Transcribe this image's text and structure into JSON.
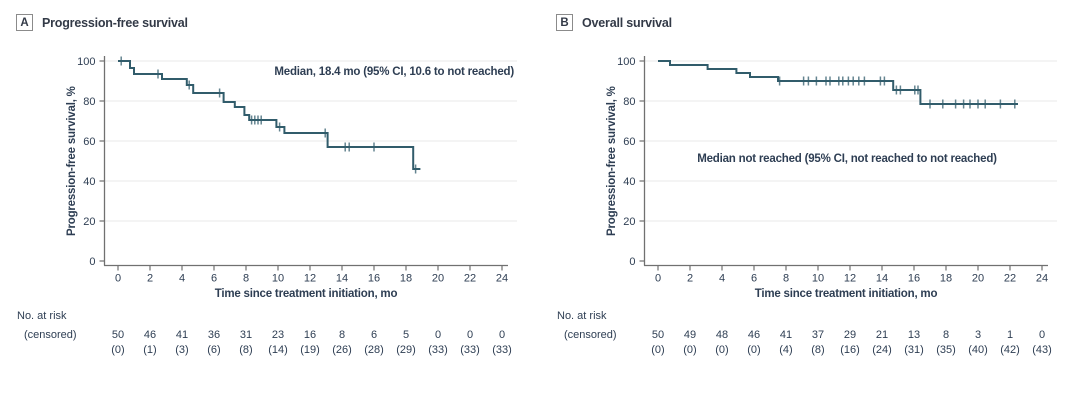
{
  "colors": {
    "curve": "#315C6B",
    "censor_tick": "#315C6B",
    "axis": "#707070",
    "gridline": "#EAEAEA",
    "text": "#2E3E53",
    "panel_title_text": "#333A47",
    "background": "#FFFFFF"
  },
  "chart_data": [
    {
      "type": "line",
      "subtype": "kaplan-meier-step",
      "panel_letter": "A",
      "title": "Progression-free survival",
      "annotation": "Median, 18.4 mo (95% CI, 10.6 to not reached)",
      "xlabel": "Time since treatment initiation, mo",
      "ylabel": "Progression-free survival, %",
      "xlim": [
        0,
        24
      ],
      "ylim": [
        0,
        100
      ],
      "xticks": [
        0,
        2,
        4,
        6,
        8,
        10,
        12,
        14,
        16,
        18,
        20,
        22,
        24
      ],
      "yticks": [
        0,
        20,
        40,
        60,
        80,
        100
      ],
      "grid": "horizontal",
      "steps": [
        [
          0,
          100
        ],
        [
          0.75,
          96.5
        ],
        [
          1.0,
          93.5
        ],
        [
          2.75,
          91
        ],
        [
          4.3,
          88
        ],
        [
          4.7,
          84
        ],
        [
          6.6,
          79.5
        ],
        [
          7.3,
          77
        ],
        [
          7.9,
          73
        ],
        [
          8.2,
          70.5
        ],
        [
          9.9,
          67
        ],
        [
          10.4,
          64
        ],
        [
          13.1,
          57
        ],
        [
          18.45,
          46
        ]
      ],
      "end_time": 18.9,
      "censor_marks": [
        [
          0.2,
          100
        ],
        [
          2.5,
          93.5
        ],
        [
          4.45,
          88
        ],
        [
          6.35,
          84
        ],
        [
          8.35,
          70.5
        ],
        [
          8.55,
          70.5
        ],
        [
          8.75,
          70.5
        ],
        [
          8.95,
          70.5
        ],
        [
          10.1,
          67
        ],
        [
          12.95,
          64
        ],
        [
          14.2,
          57
        ],
        [
          14.45,
          57
        ],
        [
          16.0,
          57
        ],
        [
          18.6,
          46
        ]
      ],
      "risk_table": {
        "row1_label": "No. at risk",
        "row2_label": "(censored)",
        "times": [
          0,
          2,
          4,
          6,
          8,
          10,
          12,
          14,
          16,
          18,
          20,
          22,
          24
        ],
        "at_risk": [
          "50",
          "46",
          "41",
          "36",
          "31",
          "23",
          "16",
          "8",
          "6",
          "5",
          "0",
          "0",
          "0"
        ],
        "censored": [
          "(0)",
          "(1)",
          "(3)",
          "(6)",
          "(8)",
          "(14)",
          "(19)",
          "(26)",
          "(28)",
          "(29)",
          "(33)",
          "(33)",
          "(33)"
        ]
      }
    },
    {
      "type": "line",
      "subtype": "kaplan-meier-step",
      "panel_letter": "B",
      "title": "Overall survival",
      "annotation": "Median not reached (95% CI, not reached to not reached)",
      "xlabel": "Time since treatment initiation, mo",
      "ylabel": "Progression-free survival, %",
      "xlim": [
        0,
        24
      ],
      "ylim": [
        0,
        100
      ],
      "xticks": [
        0,
        2,
        4,
        6,
        8,
        10,
        12,
        14,
        16,
        18,
        20,
        22,
        24
      ],
      "yticks": [
        0,
        20,
        40,
        60,
        80,
        100
      ],
      "grid": "horizontal",
      "steps": [
        [
          0,
          100
        ],
        [
          0.75,
          98
        ],
        [
          3.1,
          96
        ],
        [
          4.9,
          94
        ],
        [
          5.75,
          92
        ],
        [
          7.5,
          90
        ],
        [
          14.7,
          85.5
        ],
        [
          16.4,
          78.5
        ]
      ],
      "end_time": 22.5,
      "censor_marks": [
        [
          7.6,
          90
        ],
        [
          9.1,
          90
        ],
        [
          9.4,
          90
        ],
        [
          9.9,
          90
        ],
        [
          10.5,
          90
        ],
        [
          10.75,
          90
        ],
        [
          11.3,
          90
        ],
        [
          11.55,
          90
        ],
        [
          11.9,
          90
        ],
        [
          12.2,
          90
        ],
        [
          12.55,
          90
        ],
        [
          12.9,
          90
        ],
        [
          13.9,
          90
        ],
        [
          14.15,
          90
        ],
        [
          14.9,
          85.5
        ],
        [
          15.15,
          85.5
        ],
        [
          16.05,
          85.5
        ],
        [
          16.25,
          85.5
        ],
        [
          17.0,
          78.5
        ],
        [
          17.8,
          78.5
        ],
        [
          18.6,
          78.5
        ],
        [
          19.1,
          78.5
        ],
        [
          19.5,
          78.5
        ],
        [
          20.0,
          78.5
        ],
        [
          20.45,
          78.5
        ],
        [
          21.4,
          78.5
        ],
        [
          22.3,
          78.5
        ]
      ],
      "risk_table": {
        "row1_label": "No. at risk",
        "row2_label": "(censored)",
        "times": [
          0,
          2,
          4,
          6,
          8,
          10,
          12,
          14,
          16,
          18,
          20,
          22,
          24
        ],
        "at_risk": [
          "50",
          "49",
          "48",
          "46",
          "41",
          "37",
          "29",
          "21",
          "13",
          "8",
          "3",
          "1",
          "0"
        ],
        "censored": [
          "(0)",
          "(0)",
          "(0)",
          "(0)",
          "(4)",
          "(8)",
          "(16)",
          "(24)",
          "(31)",
          "(35)",
          "(40)",
          "(42)",
          "(43)"
        ]
      }
    }
  ]
}
